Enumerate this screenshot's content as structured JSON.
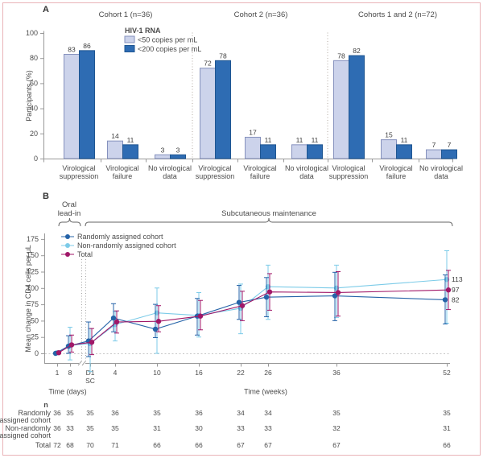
{
  "figure": {
    "panel_a_label": "A",
    "panel_b_label": "B",
    "colors": {
      "bar_light": "#ccd3eb",
      "bar_light_border": "#8591bd",
      "bar_dark": "#2e6cb3",
      "bar_dark_border": "#1f5692",
      "axis": "#999999",
      "text": "#4a4a4a",
      "separator": "#b3aaa2",
      "zero_line": "#c6c6c6",
      "frame_border": "#e9b3b8"
    }
  },
  "chart_data": [
    {
      "type": "bar",
      "panel": "A",
      "title_groups": [
        "Cohort 1 (n=36)",
        "Cohort 2 (n=36)",
        "Cohorts 1 and 2 (n=72)"
      ],
      "legend": {
        "title": "HIV-1 RNA",
        "entries": [
          {
            "label": "<50 copies per mL",
            "color": "#ccd3eb",
            "border": "#8591bd"
          },
          {
            "label": "<200 copies per mL",
            "color": "#2e6cb3",
            "border": "#1f5692"
          }
        ]
      },
      "ylabel": "Participants (%)",
      "ylim": [
        0,
        100
      ],
      "yticks": [
        0,
        20,
        40,
        60,
        80,
        100
      ],
      "categories_lines": [
        [
          "Virological",
          "suppression"
        ],
        [
          "Virological",
          "failure"
        ],
        [
          "No virological",
          "data"
        ]
      ],
      "series": [
        {
          "name": "<50 copies per mL",
          "values": [
            83,
            14,
            3,
            72,
            17,
            11,
            78,
            15,
            7
          ]
        },
        {
          "name": "<200 copies per mL",
          "values": [
            86,
            11,
            3,
            78,
            11,
            11,
            82,
            11,
            7
          ]
        }
      ]
    },
    {
      "type": "line",
      "panel": "B",
      "phase_labels": {
        "oral": [
          "Oral",
          "lead-in"
        ],
        "sc": "Subcutaneous maintenance"
      },
      "ylabel": "Mean change in CD4 cells per µL",
      "ylim": [
        0,
        175
      ],
      "yticks": [
        0,
        25,
        50,
        75,
        100,
        125,
        150,
        175
      ],
      "x_labels": [
        "1",
        "8",
        "D1",
        "4",
        "10",
        "16",
        "22",
        "26",
        "36",
        "52"
      ],
      "x_sub_label": "SC",
      "xlabel_days": "Time (days)",
      "xlabel_weeks": "Time (weeks)",
      "series": [
        {
          "name": "Randomly assigned cohort",
          "color": "#2563a8",
          "end_label": "82",
          "values": [
            0,
            11,
            19,
            54,
            37,
            57,
            78,
            86,
            88,
            82
          ],
          "ci_low": [
            null,
            0,
            -5,
            33,
            24,
            28,
            52,
            56,
            50,
            45
          ],
          "ci_high": [
            null,
            27,
            48,
            76,
            75,
            84,
            104,
            116,
            124,
            120
          ]
        },
        {
          "name": "Non-randomly assigned cohort",
          "color": "#7ccbe8",
          "end_label": "113",
          "values": [
            1,
            12,
            15,
            44,
            62,
            58,
            69,
            102,
            100,
            113
          ],
          "ci_low": [
            null,
            -10,
            -28,
            19,
            0,
            25,
            30,
            52,
            55,
            46
          ],
          "ci_high": [
            null,
            40,
            38,
            64,
            100,
            93,
            106,
            135,
            135,
            157
          ]
        },
        {
          "name": "Total",
          "color": "#a01768",
          "end_label": "97",
          "values": [
            1,
            13,
            17,
            48,
            49,
            57,
            73,
            94,
            93,
            97
          ],
          "ci_low": [
            null,
            2,
            -2,
            31,
            33,
            36,
            50,
            66,
            57,
            67
          ],
          "ci_high": [
            null,
            28,
            38,
            65,
            73,
            81,
            95,
            122,
            125,
            127
          ]
        }
      ],
      "table": {
        "header": "n",
        "rows": [
          {
            "label_lines": [
              "Randomly",
              "assigned cohort"
            ],
            "values": [
              36,
              35,
              35,
              36,
              35,
              36,
              34,
              34,
              35,
              35
            ]
          },
          {
            "label_lines": [
              "Non-randomly",
              "assigned cohort"
            ],
            "values": [
              36,
              33,
              35,
              35,
              31,
              30,
              33,
              33,
              32,
              31
            ]
          },
          {
            "label_lines": [
              "Total"
            ],
            "values": [
              72,
              68,
              70,
              71,
              66,
              66,
              67,
              67,
              67,
              66
            ]
          }
        ]
      }
    }
  ]
}
